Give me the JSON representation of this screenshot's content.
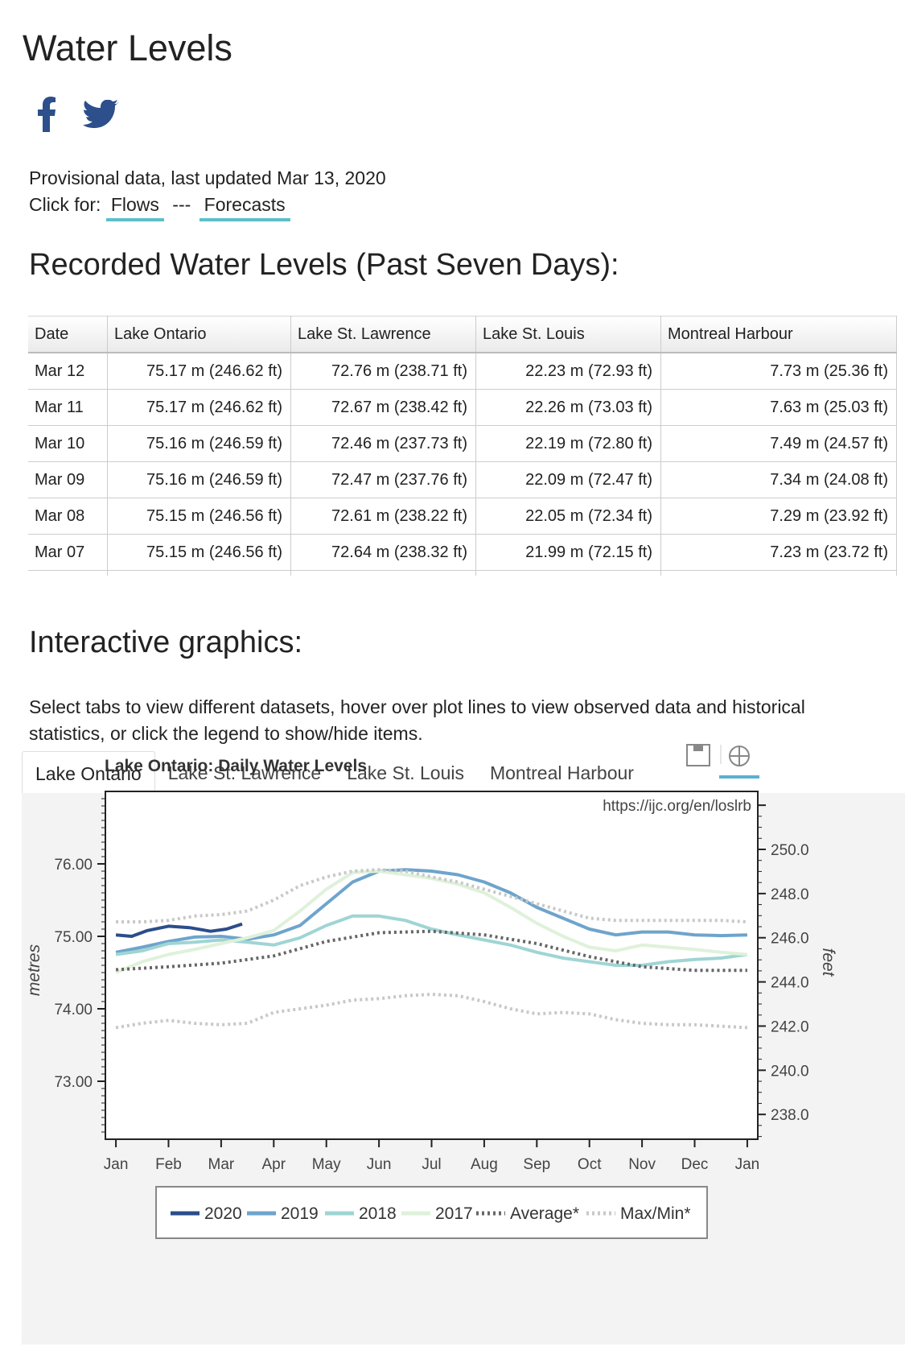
{
  "page_title": "Water Levels",
  "social": [
    "facebook-icon",
    "twitter-icon"
  ],
  "provisional_text": "Provisional data, last updated Mar 13, 2020",
  "click_for_label": "Click for:",
  "flows_link": "Flows",
  "separator": "---",
  "forecasts_link": "Forecasts",
  "recorded_heading": "Recorded Water Levels (Past Seven Days):",
  "table": {
    "headers": [
      "Date",
      "Lake Ontario",
      "Lake St. Lawrence",
      "Lake St. Louis",
      "Montreal Harbour"
    ],
    "rows": [
      [
        "Mar 12",
        "75.17 m (246.62 ft)",
        "72.76 m (238.71 ft)",
        "22.23 m (72.93 ft)",
        "7.73 m (25.36 ft)"
      ],
      [
        "Mar 11",
        "75.17 m (246.62 ft)",
        "72.67 m (238.42 ft)",
        "22.26 m (73.03 ft)",
        "7.63 m (25.03 ft)"
      ],
      [
        "Mar 10",
        "75.16 m (246.59 ft)",
        "72.46 m (237.73 ft)",
        "22.19 m (72.80 ft)",
        "7.49 m (24.57 ft)"
      ],
      [
        "Mar 09",
        "75.16 m (246.59 ft)",
        "72.47 m (237.76 ft)",
        "22.09 m (72.47 ft)",
        "7.34 m (24.08 ft)"
      ],
      [
        "Mar 08",
        "75.15 m (246.56 ft)",
        "72.61 m (238.22 ft)",
        "22.05 m (72.34 ft)",
        "7.29 m (23.92 ft)"
      ],
      [
        "Mar 07",
        "75.15 m (246.56 ft)",
        "72.64 m (238.32 ft)",
        "21.99 m (72.15 ft)",
        "7.23 m (23.72 ft)"
      ]
    ]
  },
  "interactive_heading": "Interactive graphics:",
  "interactive_desc": "Select tabs to view different datasets, hover over plot lines to view observed data and historical statistics, or click the legend to show/hide items.",
  "tabs": [
    "Lake Ontario",
    "Lake St. Lawrence",
    "Lake St. Louis",
    "Montreal Harbour"
  ],
  "active_tab": 0,
  "toolbar_icons": [
    "save-icon",
    "crosshair-icon"
  ],
  "chart_data": {
    "type": "line",
    "title": "Lake Ontario: Daily Water Levels",
    "source_text": "https://ijc.org/en/loslrb",
    "ylabel": "metres",
    "ylabel_right": "feet",
    "ylim": [
      72.2,
      77.0
    ],
    "yticks": [
      "73.00",
      "74.00",
      "75.00",
      "76.00"
    ],
    "yticks_right": [
      "238.0",
      "240.0",
      "242.0",
      "244.0",
      "246.0",
      "248.0",
      "250.0"
    ],
    "x_ticks": [
      "Jan",
      "Feb",
      "Mar",
      "Apr",
      "May",
      "Jun",
      "Jul",
      "Aug",
      "Sep",
      "Oct",
      "Nov",
      "Dec",
      "Jan"
    ],
    "x_positions": [
      0,
      1,
      2,
      3,
      4,
      5,
      6,
      7,
      8,
      9,
      10,
      11,
      12
    ],
    "series": [
      {
        "name": "2020",
        "color": "#2b4d8a",
        "style": "solid",
        "x": [
          0,
          0.3,
          0.6,
          1.0,
          1.4,
          1.8,
          2.1,
          2.4
        ],
        "y": [
          75.02,
          75.0,
          75.08,
          75.14,
          75.12,
          75.07,
          75.1,
          75.17
        ]
      },
      {
        "name": "2019",
        "color": "#6ea4cc",
        "style": "solid",
        "x": [
          0,
          0.5,
          1,
          1.5,
          2,
          2.5,
          3,
          3.5,
          4,
          4.5,
          5,
          5.5,
          6,
          6.5,
          7,
          7.5,
          8,
          8.5,
          9,
          9.5,
          10,
          10.5,
          11,
          11.5,
          12
        ],
        "y": [
          74.78,
          74.85,
          74.93,
          74.99,
          75.0,
          74.96,
          75.02,
          75.15,
          75.45,
          75.75,
          75.9,
          75.92,
          75.9,
          75.85,
          75.75,
          75.6,
          75.4,
          75.25,
          75.1,
          75.02,
          75.06,
          75.06,
          75.02,
          75.01,
          75.02
        ]
      },
      {
        "name": "2018",
        "color": "#9fd5d4",
        "style": "solid",
        "x": [
          0,
          0.5,
          1,
          1.5,
          2,
          2.5,
          3,
          3.5,
          4,
          4.5,
          5,
          5.5,
          6,
          6.5,
          7,
          7.5,
          8,
          8.5,
          9,
          9.5,
          10,
          10.5,
          11,
          11.5,
          12
        ],
        "y": [
          74.75,
          74.8,
          74.9,
          74.92,
          74.95,
          74.92,
          74.88,
          74.98,
          75.15,
          75.28,
          75.28,
          75.22,
          75.1,
          75.02,
          74.95,
          74.88,
          74.78,
          74.7,
          74.65,
          74.6,
          74.6,
          74.65,
          74.68,
          74.7,
          74.75
        ]
      },
      {
        "name": "2017",
        "color": "#dff1da",
        "style": "solid",
        "x": [
          0,
          0.5,
          1,
          1.5,
          2,
          2.5,
          3,
          3.5,
          4,
          4.5,
          5,
          5.5,
          6,
          6.5,
          7,
          7.5,
          8,
          8.5,
          9,
          9.5,
          10,
          10.5,
          11,
          11.5,
          12
        ],
        "y": [
          74.5,
          74.65,
          74.75,
          74.82,
          74.9,
          74.98,
          75.08,
          75.35,
          75.65,
          75.88,
          75.9,
          75.85,
          75.8,
          75.72,
          75.6,
          75.4,
          75.18,
          75.0,
          74.85,
          74.8,
          74.88,
          74.85,
          74.82,
          74.78,
          74.75
        ]
      },
      {
        "name": "Average*",
        "color": "#666666",
        "style": "dotted",
        "x": [
          0,
          1,
          2,
          3,
          4,
          5,
          6,
          7,
          8,
          9,
          10,
          11,
          12
        ],
        "y": [
          74.54,
          74.58,
          74.63,
          74.73,
          74.93,
          75.05,
          75.07,
          75.02,
          74.9,
          74.72,
          74.58,
          74.53,
          74.53
        ]
      },
      {
        "name": "Max/Min*",
        "color": "#c8c8c8",
        "style": "dotted",
        "x": [
          0,
          0.5,
          1,
          1.5,
          2,
          2.5,
          3,
          3.5,
          4,
          4.5,
          5,
          5.5,
          6,
          6.5,
          7,
          7.5,
          8,
          8.5,
          9,
          9.5,
          10,
          10.5,
          11,
          11.5,
          12
        ],
        "y": [
          75.2,
          75.2,
          75.22,
          75.28,
          75.3,
          75.35,
          75.5,
          75.7,
          75.82,
          75.9,
          75.92,
          75.9,
          75.82,
          75.75,
          75.65,
          75.55,
          75.45,
          75.35,
          75.25,
          75.22,
          75.22,
          75.22,
          75.22,
          75.22,
          75.2
        ]
      },
      {
        "name": "",
        "color": "#c8c8c8",
        "style": "dotted",
        "x": [
          0,
          0.5,
          1,
          1.5,
          2,
          2.5,
          3,
          3.5,
          4,
          4.5,
          5,
          5.5,
          6,
          6.5,
          7,
          7.5,
          8,
          8.5,
          9,
          9.5,
          10,
          10.5,
          11,
          11.5,
          12
        ],
        "y": [
          73.74,
          73.8,
          73.84,
          73.8,
          73.78,
          73.8,
          73.95,
          74.0,
          74.05,
          74.12,
          74.14,
          74.18,
          74.2,
          74.18,
          74.1,
          74.0,
          73.93,
          73.95,
          73.93,
          73.85,
          73.8,
          73.78,
          73.78,
          73.76,
          73.74
        ]
      }
    ]
  }
}
